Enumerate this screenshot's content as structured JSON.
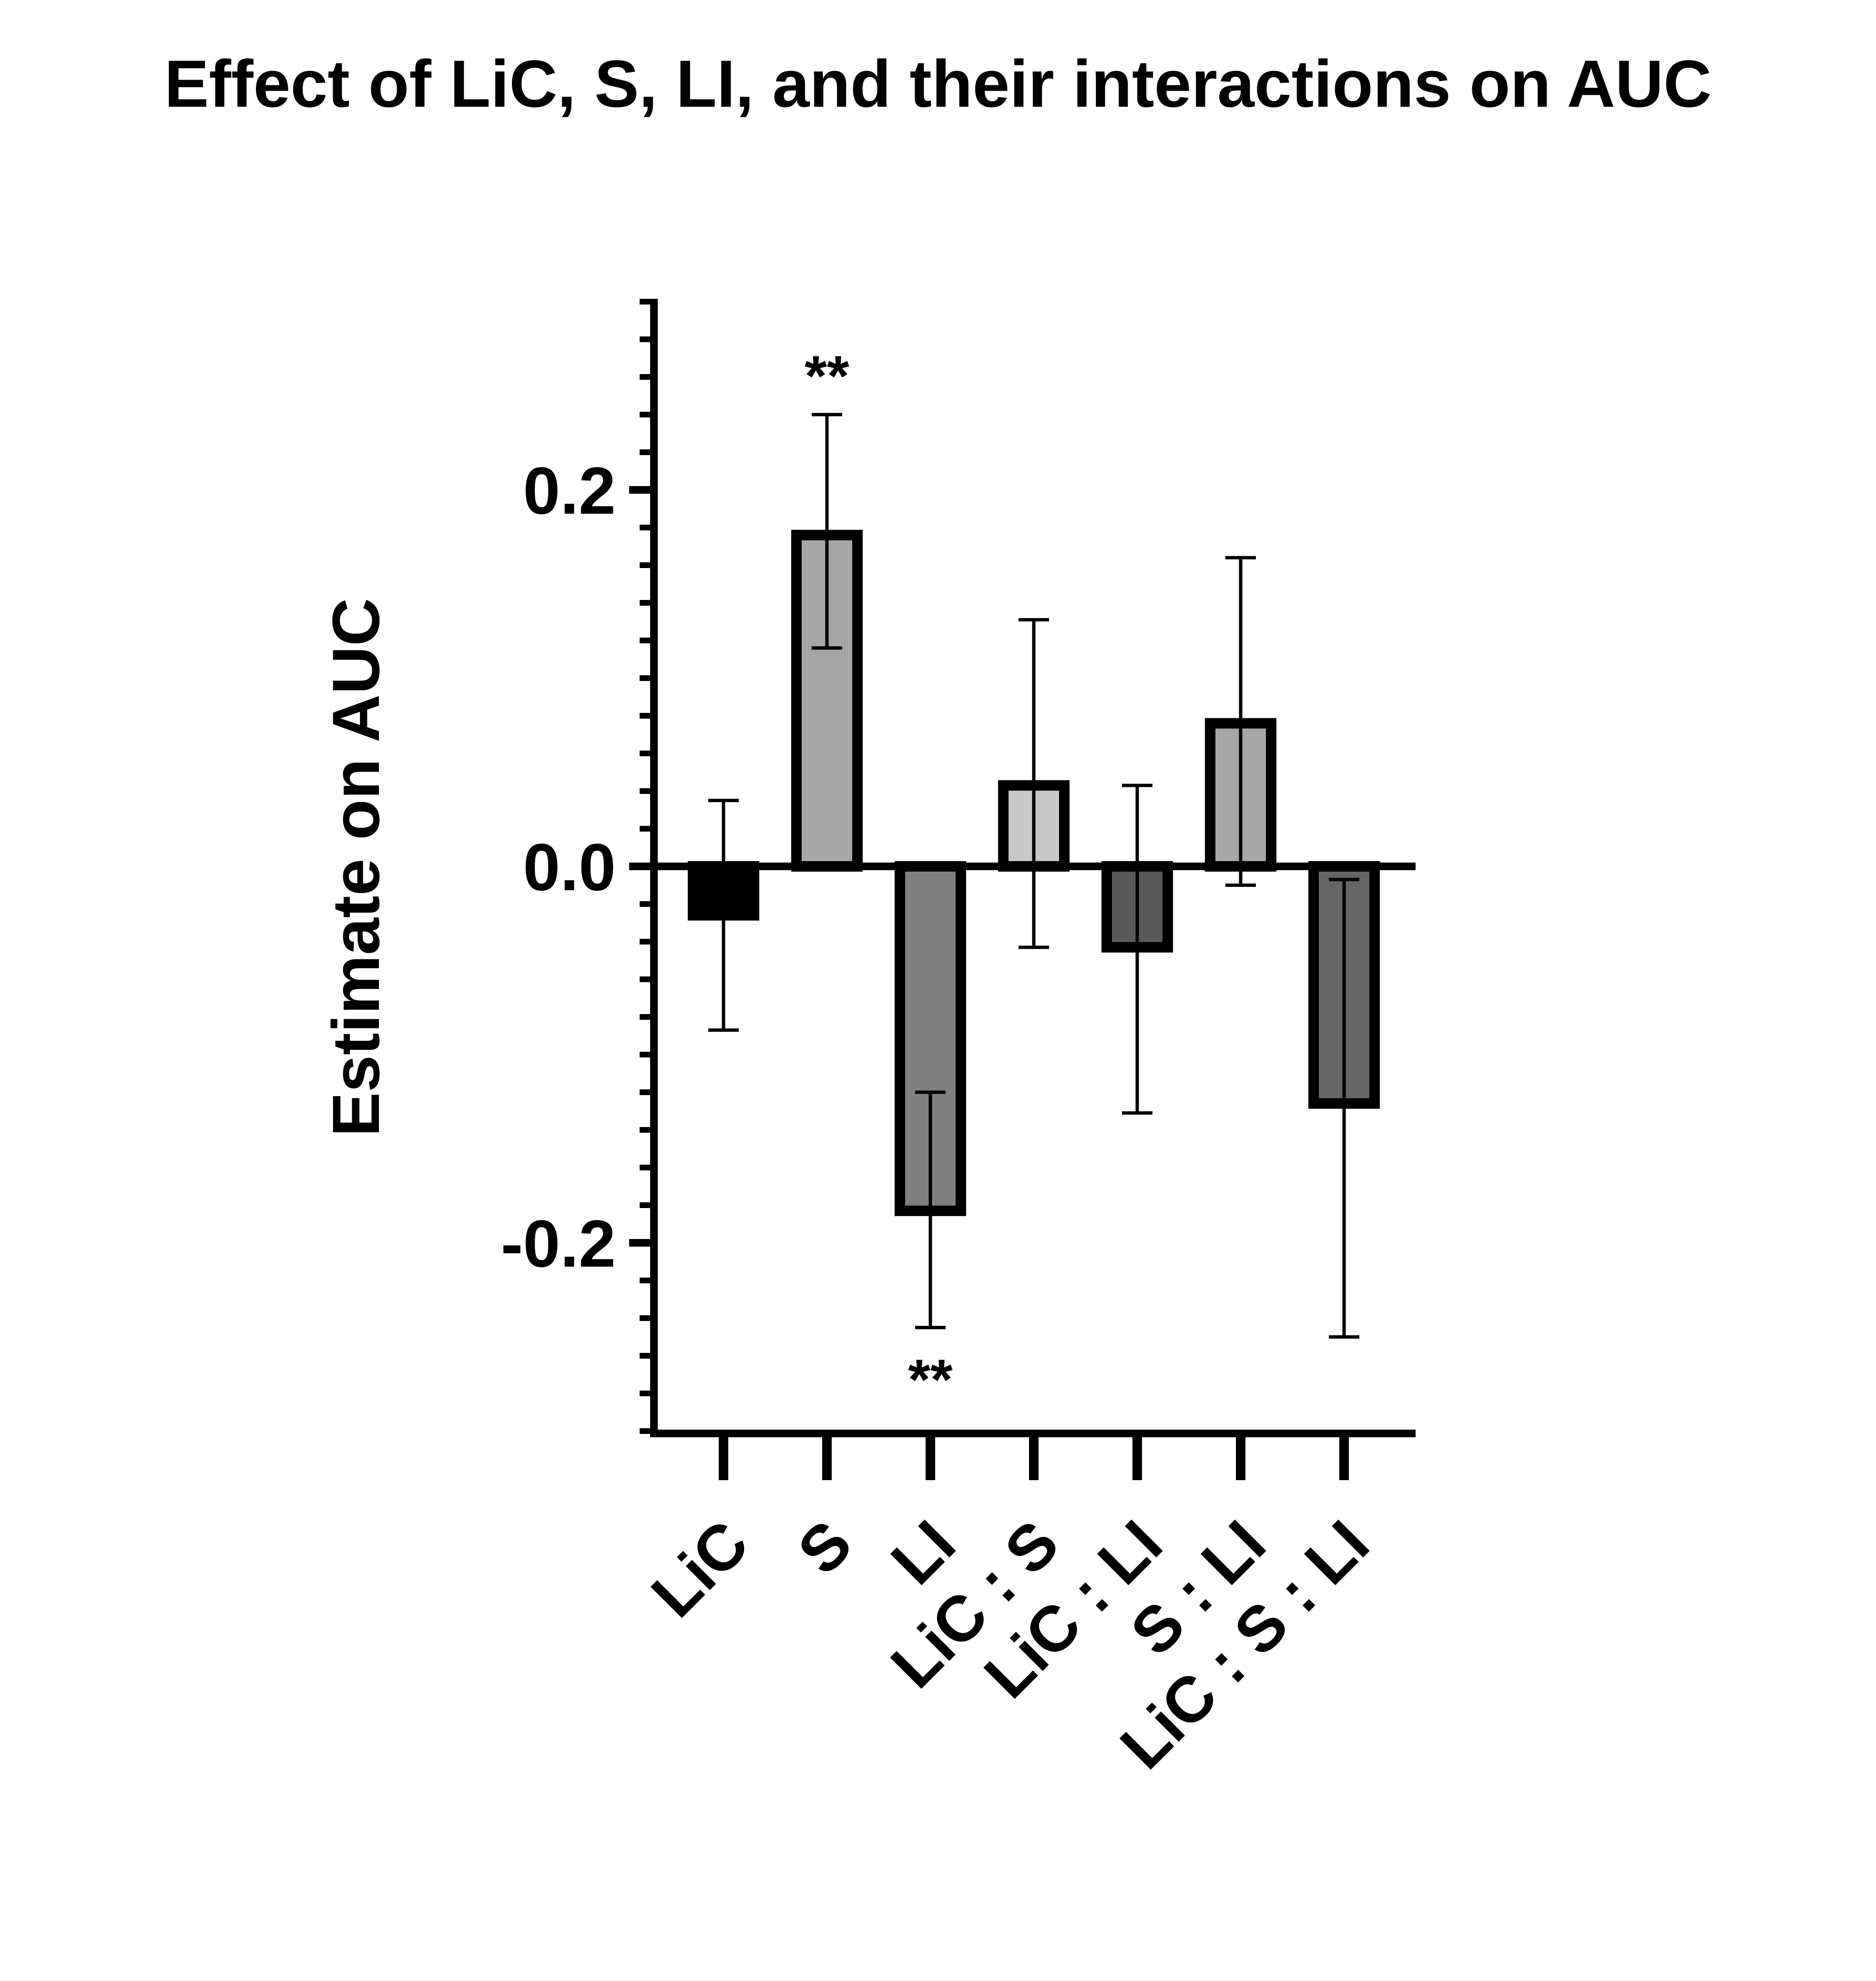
{
  "chart_data": {
    "type": "bar",
    "title": "Effect of LiC, S, LI, and their interactions on AUC",
    "xlabel": "",
    "ylabel": "Estimate on AUC",
    "ylim": [
      -0.3,
      0.3
    ],
    "yticks": [
      "0.2",
      "0.0",
      "-0.2"
    ],
    "categories": [
      "LiC",
      "S",
      "LI",
      "LiC : S",
      "LiC : LI",
      "S : LI",
      "LiC : S : LI"
    ],
    "values": [
      -0.026,
      0.176,
      -0.183,
      0.043,
      -0.043,
      0.076,
      -0.126
    ],
    "error_low": [
      -0.087,
      0.116,
      -0.245,
      -0.043,
      -0.131,
      -0.01,
      -0.25
    ],
    "error_high": [
      0.035,
      0.24,
      -0.12,
      0.131,
      0.043,
      0.164,
      -0.007
    ],
    "significance": [
      "",
      "**",
      "**",
      "",
      "",
      "",
      ""
    ],
    "bar_colors": [
      "#000000",
      "#a6a6a6",
      "#7f7f7f",
      "#c8c8c8",
      "#595959",
      "#a6a6a6",
      "#666666"
    ],
    "grid": false,
    "legend": "none"
  }
}
